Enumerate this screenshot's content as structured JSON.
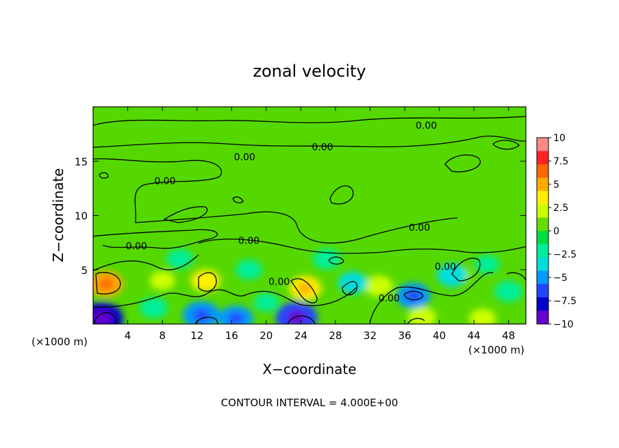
{
  "chart_data": {
    "type": "heatmap",
    "title": "zonal velocity",
    "xlabel": "X−coordinate",
    "ylabel": "Z−coordinate",
    "x_unit_left": "(×1000 m)",
    "x_unit_right": "(×1000 m)",
    "xlim": [
      0,
      50
    ],
    "ylim": [
      0,
      20
    ],
    "x_ticks": [
      4,
      8,
      12,
      16,
      20,
      24,
      28,
      32,
      36,
      40,
      44,
      48
    ],
    "y_ticks": [
      5,
      10,
      15
    ],
    "colorbar": {
      "min": -10,
      "max": 10,
      "ticks": [
        "10",
        "7.5",
        "5",
        "2.5",
        "0",
        "−2.5",
        "−5",
        "−7.5",
        "−10"
      ],
      "colors": [
        "#ff8888",
        "#ff2222",
        "#ff6600",
        "#ffaa00",
        "#ffee00",
        "#ccff00",
        "#66dd00",
        "#00dd44",
        "#00ee99",
        "#00dddd",
        "#0099ff",
        "#2244ff",
        "#0000cc",
        "#6600cc"
      ]
    },
    "contour_labels": [
      "0.00",
      "0.00",
      "0.00",
      "0.00",
      "0.00",
      "0.00",
      "0.00",
      "0.00",
      "0.00",
      "0.00"
    ],
    "contour_label_positions": [
      [
        38.5,
        18.3
      ],
      [
        26.5,
        16.3
      ],
      [
        17.5,
        15.4
      ],
      [
        8.3,
        13.2
      ],
      [
        37.7,
        8.9
      ],
      [
        18,
        7.7
      ],
      [
        5,
        7.2
      ],
      [
        40.7,
        5.3
      ],
      [
        21.5,
        3.9
      ],
      [
        34.2,
        2.4
      ]
    ],
    "blobs": [
      {
        "x": 1.5,
        "z": 3.7,
        "value": 5
      },
      {
        "x": 13,
        "z": 4,
        "value": 3.5
      },
      {
        "x": 24.5,
        "z": 3.3,
        "value": 4.5
      },
      {
        "x": 33,
        "z": 3.5,
        "value": 3
      },
      {
        "x": 42,
        "z": 4.5,
        "value": 2.5
      },
      {
        "x": 1,
        "z": 0.5,
        "value": -8
      },
      {
        "x": 12.5,
        "z": 0.8,
        "value": -6
      },
      {
        "x": 16.5,
        "z": 0.5,
        "value": -5
      },
      {
        "x": 23.5,
        "z": 0.6,
        "value": -7.5
      },
      {
        "x": 37,
        "z": 2.6,
        "value": -5
      },
      {
        "x": 30,
        "z": 3.8,
        "value": -3.5
      },
      {
        "x": 41.5,
        "z": 4.5,
        "value": -4
      },
      {
        "x": 10,
        "z": 6,
        "value": -2.5
      },
      {
        "x": 18,
        "z": 5,
        "value": -2.5
      },
      {
        "x": 27,
        "z": 6,
        "value": -3
      },
      {
        "x": 48,
        "z": 3,
        "value": -3
      },
      {
        "x": 45.5,
        "z": 5.5,
        "value": -2
      },
      {
        "x": 7,
        "z": 1.5,
        "value": -3
      },
      {
        "x": 45,
        "z": 0.5,
        "value": 2.5
      },
      {
        "x": 38,
        "z": 0.6,
        "value": 3
      },
      {
        "x": 8,
        "z": 4,
        "value": 2
      },
      {
        "x": 20,
        "z": 2,
        "value": -2
      }
    ],
    "footer": "CONTOUR INTERVAL = 4.000E+00"
  }
}
